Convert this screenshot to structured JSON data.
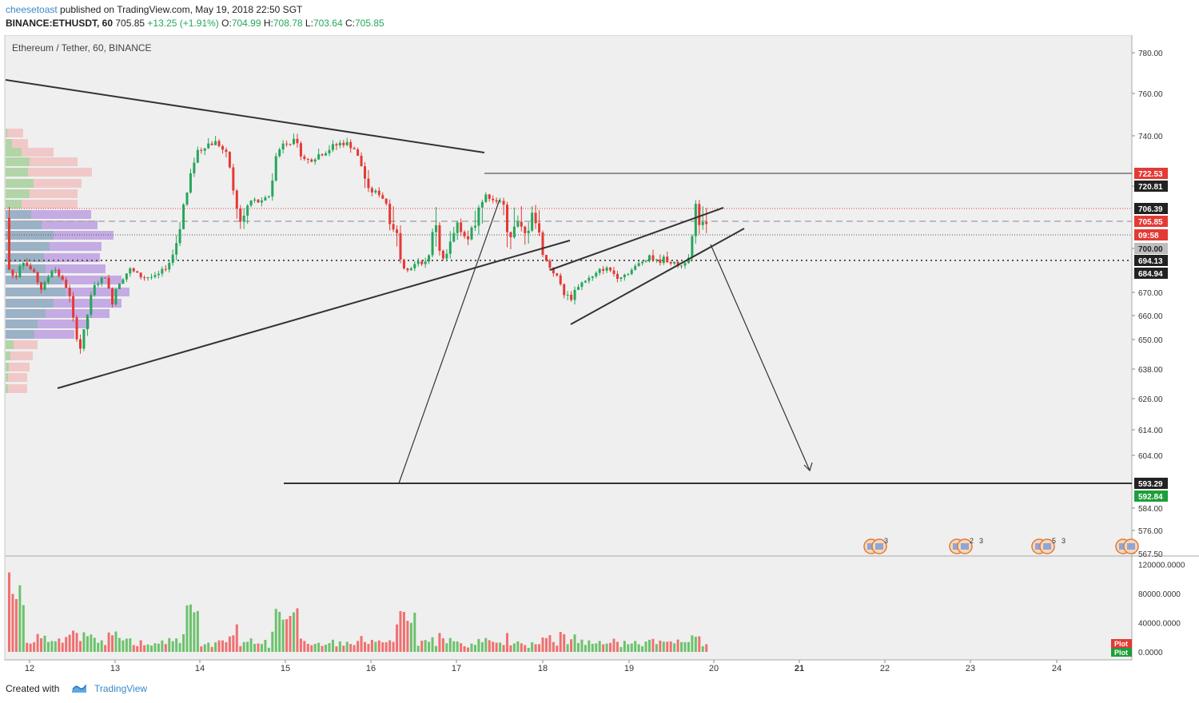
{
  "header": {
    "author": "cheesetoast",
    "published": " published on TradingView.com, May 19, 2018 22:50 SGT",
    "symbol": "BINANCE:ETHUSDT, 60",
    "last": "705.85",
    "change": "+13.25 (+1.91%)",
    "ohlc_o_label": "O:",
    "ohlc_o": "704.99",
    "ohlc_h_label": "H:",
    "ohlc_h": "708.78",
    "ohlc_l_label": "L:",
    "ohlc_l": "703.64",
    "ohlc_c_label": "C:",
    "ohlc_c": "705.85"
  },
  "footer": {
    "created_with": "Created with",
    "brand": "TradingView"
  },
  "chart_data": {
    "type": "candlestick",
    "title": "Ethereum / Tether, 60, BINANCE",
    "x_tick_labels": [
      "12",
      "13",
      "14",
      "15",
      "16",
      "17",
      "18",
      "19",
      "20",
      "21",
      "22",
      "23",
      "24"
    ],
    "price_axis": {
      "ticks": [
        "780.00",
        "760.00",
        "740.00",
        "720.81",
        "700.00",
        "670.00",
        "660.00",
        "650.00",
        "638.00",
        "626.00",
        "614.00",
        "604.00",
        "584.00",
        "576.00",
        "567.50"
      ],
      "tick_values": [
        780,
        760,
        740,
        720.81,
        700,
        670,
        660,
        650,
        638,
        626,
        614,
        604,
        584,
        576,
        567.5
      ],
      "ylim": [
        567.5,
        785
      ]
    },
    "price_labels": [
      {
        "text": "722.53",
        "value": 722.53,
        "bg": "#e53935",
        "fg": "#ffffff"
      },
      {
        "text": "720.81",
        "value": 720.81,
        "bg": "#222222",
        "fg": "#ffffff"
      },
      {
        "text": "706.39",
        "value": 706.39,
        "bg": "#222222",
        "fg": "#ffffff"
      },
      {
        "text": "705.85",
        "value": 705.85,
        "bg": "#e53935",
        "fg": "#ffffff"
      },
      {
        "text": "09:58",
        "value": 702.2,
        "bg": "#e53935",
        "fg": "#ffffff"
      },
      {
        "text": "700.00",
        "value": 700,
        "bg": "#bdbdbd",
        "fg": "#222222"
      },
      {
        "text": "694.13",
        "value": 694.13,
        "bg": "#222222",
        "fg": "#ffffff"
      },
      {
        "text": "684.94",
        "value": 684.94,
        "bg": "#222222",
        "fg": "#ffffff"
      },
      {
        "text": "593.29",
        "value": 593.29,
        "bg": "#222222",
        "fg": "#ffffff"
      },
      {
        "text": "592.84",
        "value": 592.84,
        "bg": "#1e9e3a",
        "fg": "#ffffff"
      }
    ],
    "horizontal_lines": [
      {
        "value": 722.53,
        "style": "solid",
        "color": "#333333"
      },
      {
        "value": 706.39,
        "style": "dotted",
        "color": "#e53935"
      },
      {
        "value": 705.85,
        "style": "dashed",
        "color": "#aaaaaa"
      },
      {
        "value": 702.2,
        "style": "dotted",
        "color": "#555555"
      },
      {
        "value": 694.13,
        "style": "dotted",
        "color": "#555555"
      },
      {
        "value": 593.29,
        "style": "solid",
        "color": "#333333"
      }
    ],
    "volume_axis": {
      "ticks": [
        "120000.0000",
        "80000.0000",
        "40000.0000",
        "0.0000"
      ],
      "tick_values": [
        120000,
        80000,
        40000,
        0
      ],
      "ylim": [
        0,
        125000
      ]
    },
    "plot_badges": [
      "Plot",
      "Plot"
    ],
    "event_badges": [
      "3",
      "2",
      "3",
      "3",
      "5",
      "3"
    ],
    "colors": {
      "up": "#26a65b",
      "down": "#e53935",
      "up_volume": "#6cc26c",
      "down_volume": "#f07070",
      "background": "#efefef",
      "drawing": "#333333"
    }
  }
}
